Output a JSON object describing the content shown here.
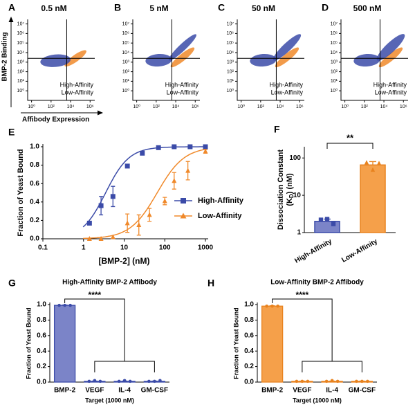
{
  "chart_data": [
    {
      "type": "flow",
      "panel": "A",
      "title": "0.5 nM",
      "xlabel": "Affibody Expression",
      "ylabel": "BMP-2 Binding",
      "xlim": [
        0.4,
        3000000
      ],
      "ylim": [
        0.1,
        30000000
      ],
      "log": true,
      "xticks": [
        {
          "value": 1,
          "label": "10⁰"
        },
        {
          "value": 100,
          "label": "10²"
        },
        {
          "value": 10000,
          "label": "10⁴"
        },
        {
          "value": 1000000,
          "label": "10⁶"
        }
      ],
      "yticks": [
        {
          "value": 1,
          "label": "10⁰"
        },
        {
          "value": 10,
          "label": "10¹"
        },
        {
          "value": 100,
          "label": "10²"
        },
        {
          "value": 1000,
          "label": "10³"
        },
        {
          "value": 10000,
          "label": "10⁴"
        },
        {
          "value": 100000,
          "label": "10⁵"
        },
        {
          "value": 1000000,
          "label": "10⁶"
        },
        {
          "value": 10000000,
          "label": "10⁷"
        }
      ],
      "gate": {
        "x": 4000,
        "y": 2500
      },
      "series": [
        {
          "name": "High-Affinity",
          "color": "#3b4ba8"
        },
        {
          "name": "Low-Affinity",
          "color": "#f0892a"
        }
      ]
    },
    {
      "type": "flow",
      "panel": "B",
      "title": "5 nM",
      "xlim": [
        0.4,
        3000000
      ],
      "ylim": [
        0.1,
        30000000
      ],
      "log": true,
      "xticks": [
        {
          "value": 1,
          "label": "10⁰"
        },
        {
          "value": 100,
          "label": "10²"
        },
        {
          "value": 10000,
          "label": "10⁴"
        },
        {
          "value": 1000000,
          "label": "10⁶"
        }
      ],
      "yticks": [
        {
          "value": 1,
          "label": "10⁰"
        },
        {
          "value": 10,
          "label": "10¹"
        },
        {
          "value": 100,
          "label": "10²"
        },
        {
          "value": 1000,
          "label": "10³"
        },
        {
          "value": 10000,
          "label": "10⁴"
        },
        {
          "value": 100000,
          "label": "10⁵"
        },
        {
          "value": 1000000,
          "label": "10⁶"
        },
        {
          "value": 10000000,
          "label": "10⁷"
        }
      ],
      "gate": {
        "x": 4000,
        "y": 2500
      },
      "series": [
        {
          "name": "High-Affinity",
          "color": "#3b4ba8"
        },
        {
          "name": "Low-Affinity",
          "color": "#f0892a"
        }
      ]
    },
    {
      "type": "flow",
      "panel": "C",
      "title": "50 nM",
      "xlim": [
        0.4,
        3000000
      ],
      "ylim": [
        0.1,
        30000000
      ],
      "log": true,
      "xticks": [
        {
          "value": 1,
          "label": "10⁰"
        },
        {
          "value": 100,
          "label": "10²"
        },
        {
          "value": 10000,
          "label": "10⁴"
        },
        {
          "value": 1000000,
          "label": "10⁶"
        }
      ],
      "yticks": [
        {
          "value": 1,
          "label": "10⁰"
        },
        {
          "value": 10,
          "label": "10¹"
        },
        {
          "value": 100,
          "label": "10²"
        },
        {
          "value": 1000,
          "label": "10³"
        },
        {
          "value": 10000,
          "label": "10⁴"
        },
        {
          "value": 100000,
          "label": "10⁵"
        },
        {
          "value": 1000000,
          "label": "10⁶"
        },
        {
          "value": 10000000,
          "label": "10⁷"
        }
      ],
      "gate": {
        "x": 4000,
        "y": 2500
      },
      "series": [
        {
          "name": "High-Affinity",
          "color": "#3b4ba8"
        },
        {
          "name": "Low-Affinity",
          "color": "#f0892a"
        }
      ]
    },
    {
      "type": "flow",
      "panel": "D",
      "title": "500 nM",
      "xlim": [
        0.4,
        3000000
      ],
      "ylim": [
        0.1,
        30000000
      ],
      "log": true,
      "xticks": [
        {
          "value": 1,
          "label": "10⁰"
        },
        {
          "value": 100,
          "label": "10²"
        },
        {
          "value": 10000,
          "label": "10⁴"
        },
        {
          "value": 1000000,
          "label": "10⁶"
        }
      ],
      "yticks": [
        {
          "value": 1,
          "label": "10⁰"
        },
        {
          "value": 10,
          "label": "10¹"
        },
        {
          "value": 100,
          "label": "10²"
        },
        {
          "value": 1000,
          "label": "10³"
        },
        {
          "value": 10000,
          "label": "10⁴"
        },
        {
          "value": 100000,
          "label": "10⁵"
        },
        {
          "value": 1000000,
          "label": "10⁶"
        },
        {
          "value": 10000000,
          "label": "10⁷"
        }
      ],
      "gate": {
        "x": 4000,
        "y": 2500
      },
      "series": [
        {
          "name": "High-Affinity",
          "color": "#3b4ba8"
        },
        {
          "name": "Low-Affinity",
          "color": "#f0892a"
        }
      ]
    },
    {
      "type": "line",
      "panel": "E",
      "xlabel": "[BMP-2] (nM)",
      "ylabel": "Fraction of Yeast Bound",
      "xlog": true,
      "xlim": [
        0.1,
        1000
      ],
      "xticks": [
        0.1,
        1,
        10,
        100,
        1000
      ],
      "ylim": [
        0,
        1
      ],
      "yticks": [
        {
          "value": 0,
          "label": "0.0"
        },
        0.2,
        0.4,
        0.6,
        0.8,
        {
          "value": 1,
          "label": "1.0"
        }
      ],
      "series": [
        {
          "name": "High-Affinity",
          "color": "#3b4ba8",
          "marker": "square",
          "kd": 3.5,
          "hill": 1.5,
          "x": [
            1.4,
            2.7,
            5.3,
            12,
            28,
            70,
            170,
            420,
            1000
          ],
          "values": [
            0.17,
            0.36,
            0.46,
            0.79,
            0.93,
            0.99,
            1.0,
            1.0,
            1.0
          ],
          "errors": [
            null,
            0.1,
            0.11,
            null,
            null,
            null,
            null,
            null,
            null
          ]
        },
        {
          "name": "Low-Affinity",
          "color": "#f0892a",
          "marker": "triangle",
          "kd": 65,
          "hill": 1.3,
          "x": [
            1.4,
            2.7,
            5.3,
            12,
            23,
            42,
            100,
            170,
            370,
            1000
          ],
          "values": [
            0,
            0,
            0.02,
            0.17,
            0.15,
            0.26,
            0.41,
            0.63,
            0.74,
            0.95
          ],
          "errors": [
            null,
            null,
            null,
            0.1,
            0.11,
            0.07,
            0.04,
            0.09,
            0.1,
            0.02
          ]
        }
      ]
    },
    {
      "type": "kdbar",
      "panel": "F",
      "significance": "**",
      "ylabel": {
        "line1": "Dissociation Constant",
        "k": "(K",
        "sub": "D",
        "rest": ") (nM)"
      },
      "ylog": true,
      "ylim": [
        1,
        200
      ],
      "yticks": [
        1,
        10,
        100
      ],
      "categories": [
        "High-Affinity",
        "Low-Affinity"
      ],
      "values": [
        2.0,
        65
      ],
      "errors": [
        0.3,
        15
      ],
      "points": [
        [
          2.2,
          2.3,
          1.7
        ],
        [
          75,
          48,
          72
        ]
      ],
      "markers": [
        "square",
        "triangle"
      ],
      "colors": [
        "#7b84c8",
        "#f5a04a"
      ],
      "edges": [
        "#3b4ba8",
        "#e8821e"
      ]
    },
    {
      "type": "bar",
      "panel": "G",
      "title": "High-Affinity BMP-2 Affibody",
      "significance": "****",
      "xlabel": "Target (1000 nM)",
      "ylabel": "Fraction of Yeast Bound",
      "ylim": [
        0,
        1
      ],
      "yticks": [
        {
          "value": 0,
          "label": "0.0"
        },
        0.2,
        0.4,
        0.6,
        0.8,
        {
          "value": 1,
          "label": "1.0"
        }
      ],
      "categories": [
        "BMP-2",
        "VEGF",
        "IL-4",
        "GM-CSF"
      ],
      "values": [
        0.99,
        0.01,
        0.01,
        0.01
      ],
      "errors": [
        0.005,
        0.005,
        0.005,
        0.005
      ],
      "points": [
        [
          0.99,
          0.99,
          0.99
        ],
        [
          0.01,
          0.02,
          0.01
        ],
        [
          0.01,
          0.02,
          0.01
        ],
        [
          0.01,
          0.01,
          0.02
        ]
      ],
      "color": "#7b84c8",
      "edge": "#3b4ba8"
    },
    {
      "type": "bar",
      "panel": "H",
      "title": "Low-Affinity BMP-2 Affibody",
      "significance": "****",
      "xlabel": "Target (1000 nM)",
      "ylabel": "Fraction of Yeast Bound",
      "ylim": [
        0,
        1
      ],
      "yticks": [
        {
          "value": 0,
          "label": "0.0"
        },
        0.2,
        0.4,
        0.6,
        0.8,
        {
          "value": 1,
          "label": "1.0"
        }
      ],
      "categories": [
        "BMP-2",
        "VEGF",
        "IL-4",
        "GM-CSF"
      ],
      "values": [
        0.98,
        0.01,
        0.01,
        0.01
      ],
      "errors": [
        0.005,
        0.005,
        0.005,
        0.005
      ],
      "points": [
        [
          0.98,
          0.98,
          0.98
        ],
        [
          0.01,
          0.01,
          0.01
        ],
        [
          0.01,
          0.02,
          0.01
        ],
        [
          0.01,
          0.01,
          0.01
        ]
      ],
      "color": "#f5a04a",
      "edge": "#e8821e"
    }
  ]
}
